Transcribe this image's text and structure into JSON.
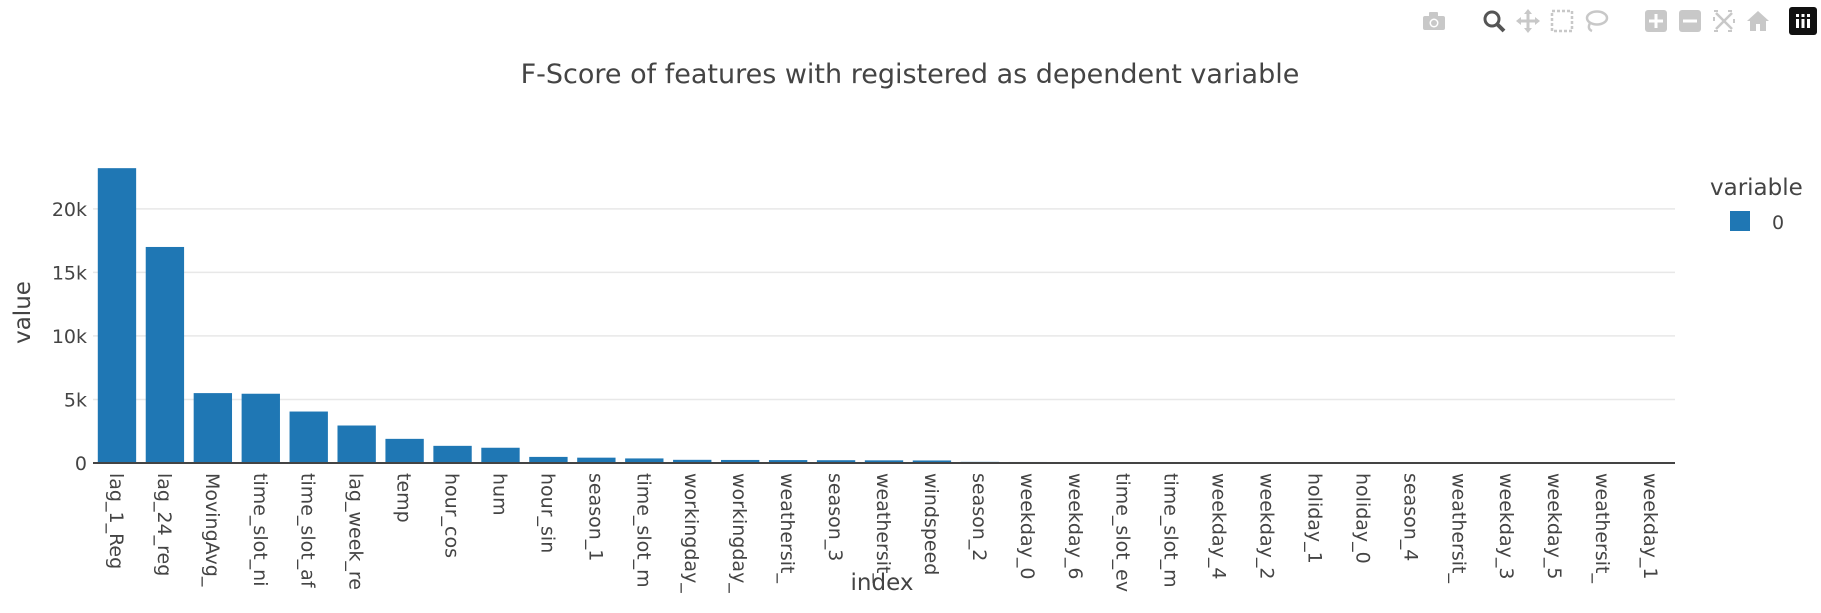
{
  "modebar": {
    "buttons": [
      "camera-icon",
      "zoom-icon",
      "pan-icon",
      "box-select-icon",
      "lasso-icon",
      "zoom-in-icon",
      "zoom-out-icon",
      "autoscale-icon",
      "reset-axes-icon"
    ],
    "logo": "plotly-logo-icon"
  },
  "chart_data": {
    "type": "bar",
    "title": "F-Score of features with registered as dependent variable",
    "xlabel": "index",
    "ylabel": "value",
    "ylim": [
      0,
      24000
    ],
    "yticks": [
      0,
      5000,
      10000,
      15000,
      20000
    ],
    "ytick_labels": [
      "0",
      "5k",
      "10k",
      "15k",
      "20k"
    ],
    "grid": true,
    "legend": {
      "title": "variable",
      "placement": "top-right",
      "entries": [
        "0"
      ]
    },
    "categories": [
      "lag_1_Reg",
      "lag_24_reg",
      "MovingAvg_",
      "time_slot_ni",
      "time_slot_af",
      "lag_week_re",
      "temp",
      "hour_cos",
      "hum",
      "hour_sin",
      "season_1",
      "time_slot_m",
      "workingday_",
      "workingday_",
      "weathersit_",
      "season_3",
      "weathersit_",
      "windspeed",
      "season_2",
      "weekday_0",
      "weekday_6",
      "time_slot_ev",
      "time_slot_m",
      "weekday_4",
      "weekday_2",
      "holiday_1",
      "holiday_0",
      "season_4",
      "weathersit_",
      "weekday_3",
      "weekday_5",
      "weathersit_",
      "weekday_1"
    ],
    "series": [
      {
        "name": "0",
        "color": "#1f77b4",
        "values": [
          23200,
          17000,
          5500,
          5450,
          4050,
          2950,
          1900,
          1350,
          1200,
          480,
          420,
          360,
          250,
          240,
          230,
          220,
          210,
          200,
          90,
          80,
          75,
          70,
          65,
          60,
          55,
          50,
          48,
          45,
          42,
          38,
          35,
          30,
          25
        ]
      }
    ]
  }
}
